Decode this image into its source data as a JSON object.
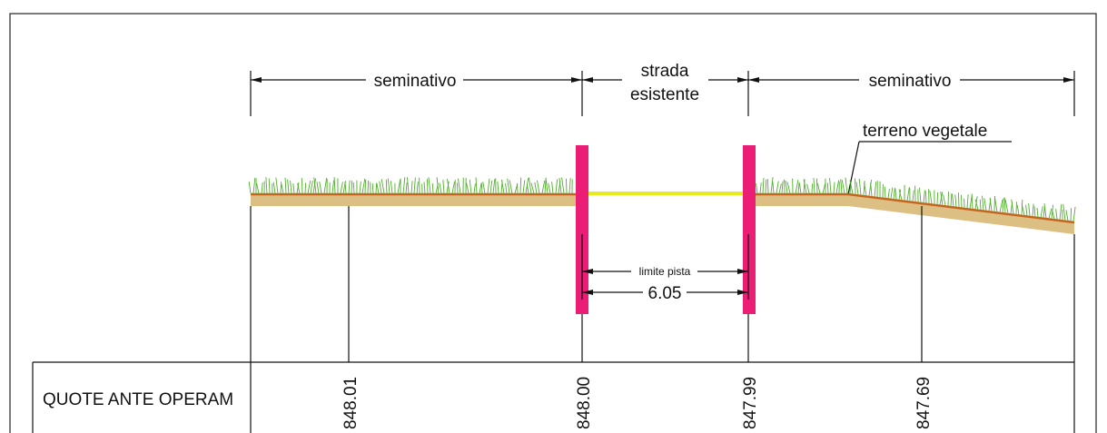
{
  "labels": {
    "seminativo_left": "seminativo",
    "strada_line1": "strada",
    "strada_line2": "esistente",
    "seminativo_right": "seminativo",
    "terreno": "terreno vegetale",
    "limite": "limite pista",
    "width": "6.05"
  },
  "table": {
    "header": "QUOTE ANTE OPERAM",
    "quotes": [
      "848.01",
      "848.00",
      "847.99",
      "847.69"
    ]
  },
  "colors": {
    "post": "#ec1d74",
    "road": "#e6ec1c",
    "soil": "#dcbf83",
    "soil_line": "#c8631e",
    "grass": "#4fae2a",
    "line": "#111111"
  }
}
